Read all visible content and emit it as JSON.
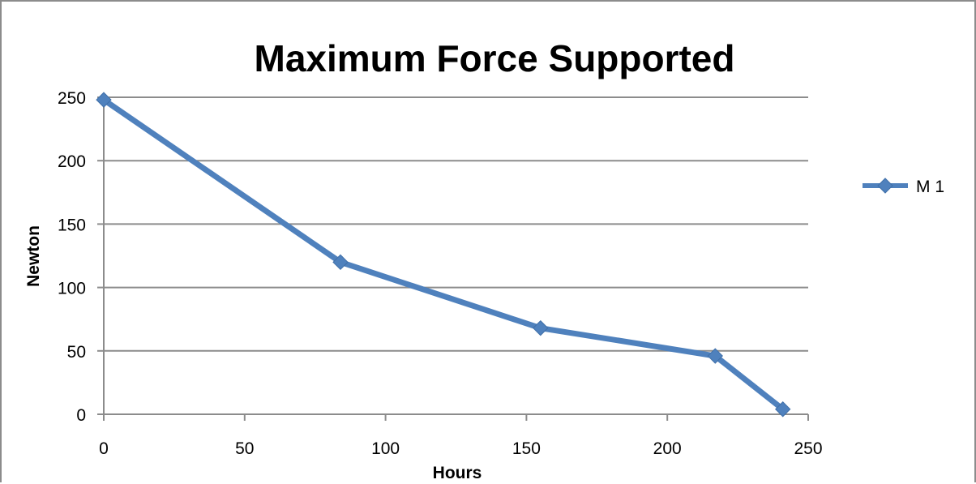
{
  "chart_data": {
    "type": "line",
    "title": "Maximum Force Supported",
    "xlabel": "Hours",
    "ylabel": "Newton",
    "xlim": [
      0,
      250
    ],
    "ylim": [
      0,
      250
    ],
    "x_ticks": [
      0,
      50,
      100,
      150,
      200,
      250
    ],
    "y_ticks": [
      0,
      50,
      100,
      150,
      200,
      250
    ],
    "x_tick_labels": [
      "0",
      "50",
      "100",
      "150",
      "200",
      "250"
    ],
    "y_tick_labels": [
      "0",
      "50",
      "100",
      "150",
      "200",
      "250"
    ],
    "grid": "horizontal",
    "legend_position": "right",
    "series": [
      {
        "name": "M 1",
        "color": "#4f81bd",
        "marker": "diamond",
        "x": [
          0,
          84,
          155,
          217,
          241
        ],
        "y": [
          248,
          120,
          68,
          46,
          4
        ]
      }
    ]
  }
}
